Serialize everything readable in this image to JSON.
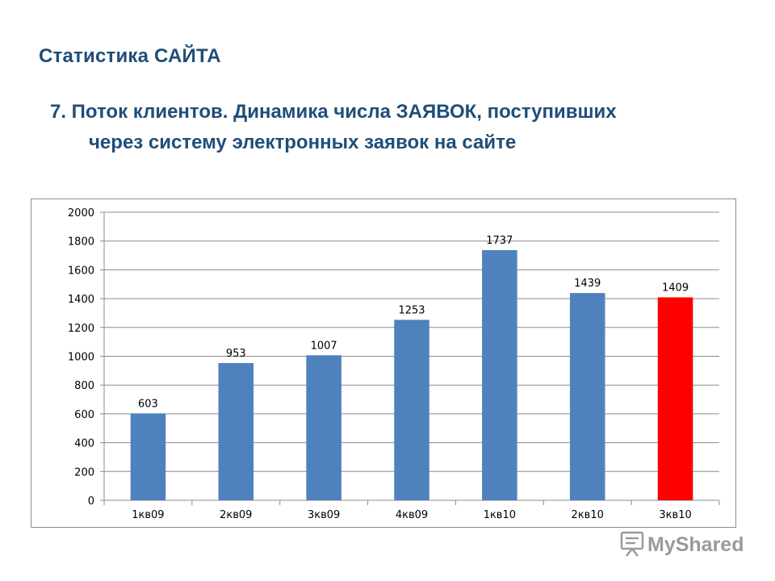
{
  "header": {
    "section_title": "Статистика САЙТА",
    "heading_line1": "7. Поток клиентов. Динамика числа ЗАЯВОК, поступивших",
    "heading_line2": "через систему электронных заявок на сайте"
  },
  "chart_data": {
    "type": "bar",
    "categories": [
      "1кв09",
      "2кв09",
      "3кв09",
      "4кв09",
      "1кв10",
      "2кв10",
      "3кв10"
    ],
    "values": [
      603,
      953,
      1007,
      1253,
      1737,
      1439,
      1409
    ],
    "data_labels": [
      "603",
      "953",
      "1007",
      "1253",
      "1737",
      "1439",
      "1409"
    ],
    "y_ticks": [
      0,
      200,
      400,
      600,
      800,
      1000,
      1200,
      1400,
      1600,
      1800,
      2000
    ],
    "ylim": [
      0,
      2000
    ],
    "grid": true,
    "legend": "none",
    "bar_color": "#4f81bd",
    "highlight_index": 6,
    "highlight_color": "#ff0000"
  },
  "watermark": {
    "text": "MyShared",
    "icon": "presentation-board-icon"
  }
}
